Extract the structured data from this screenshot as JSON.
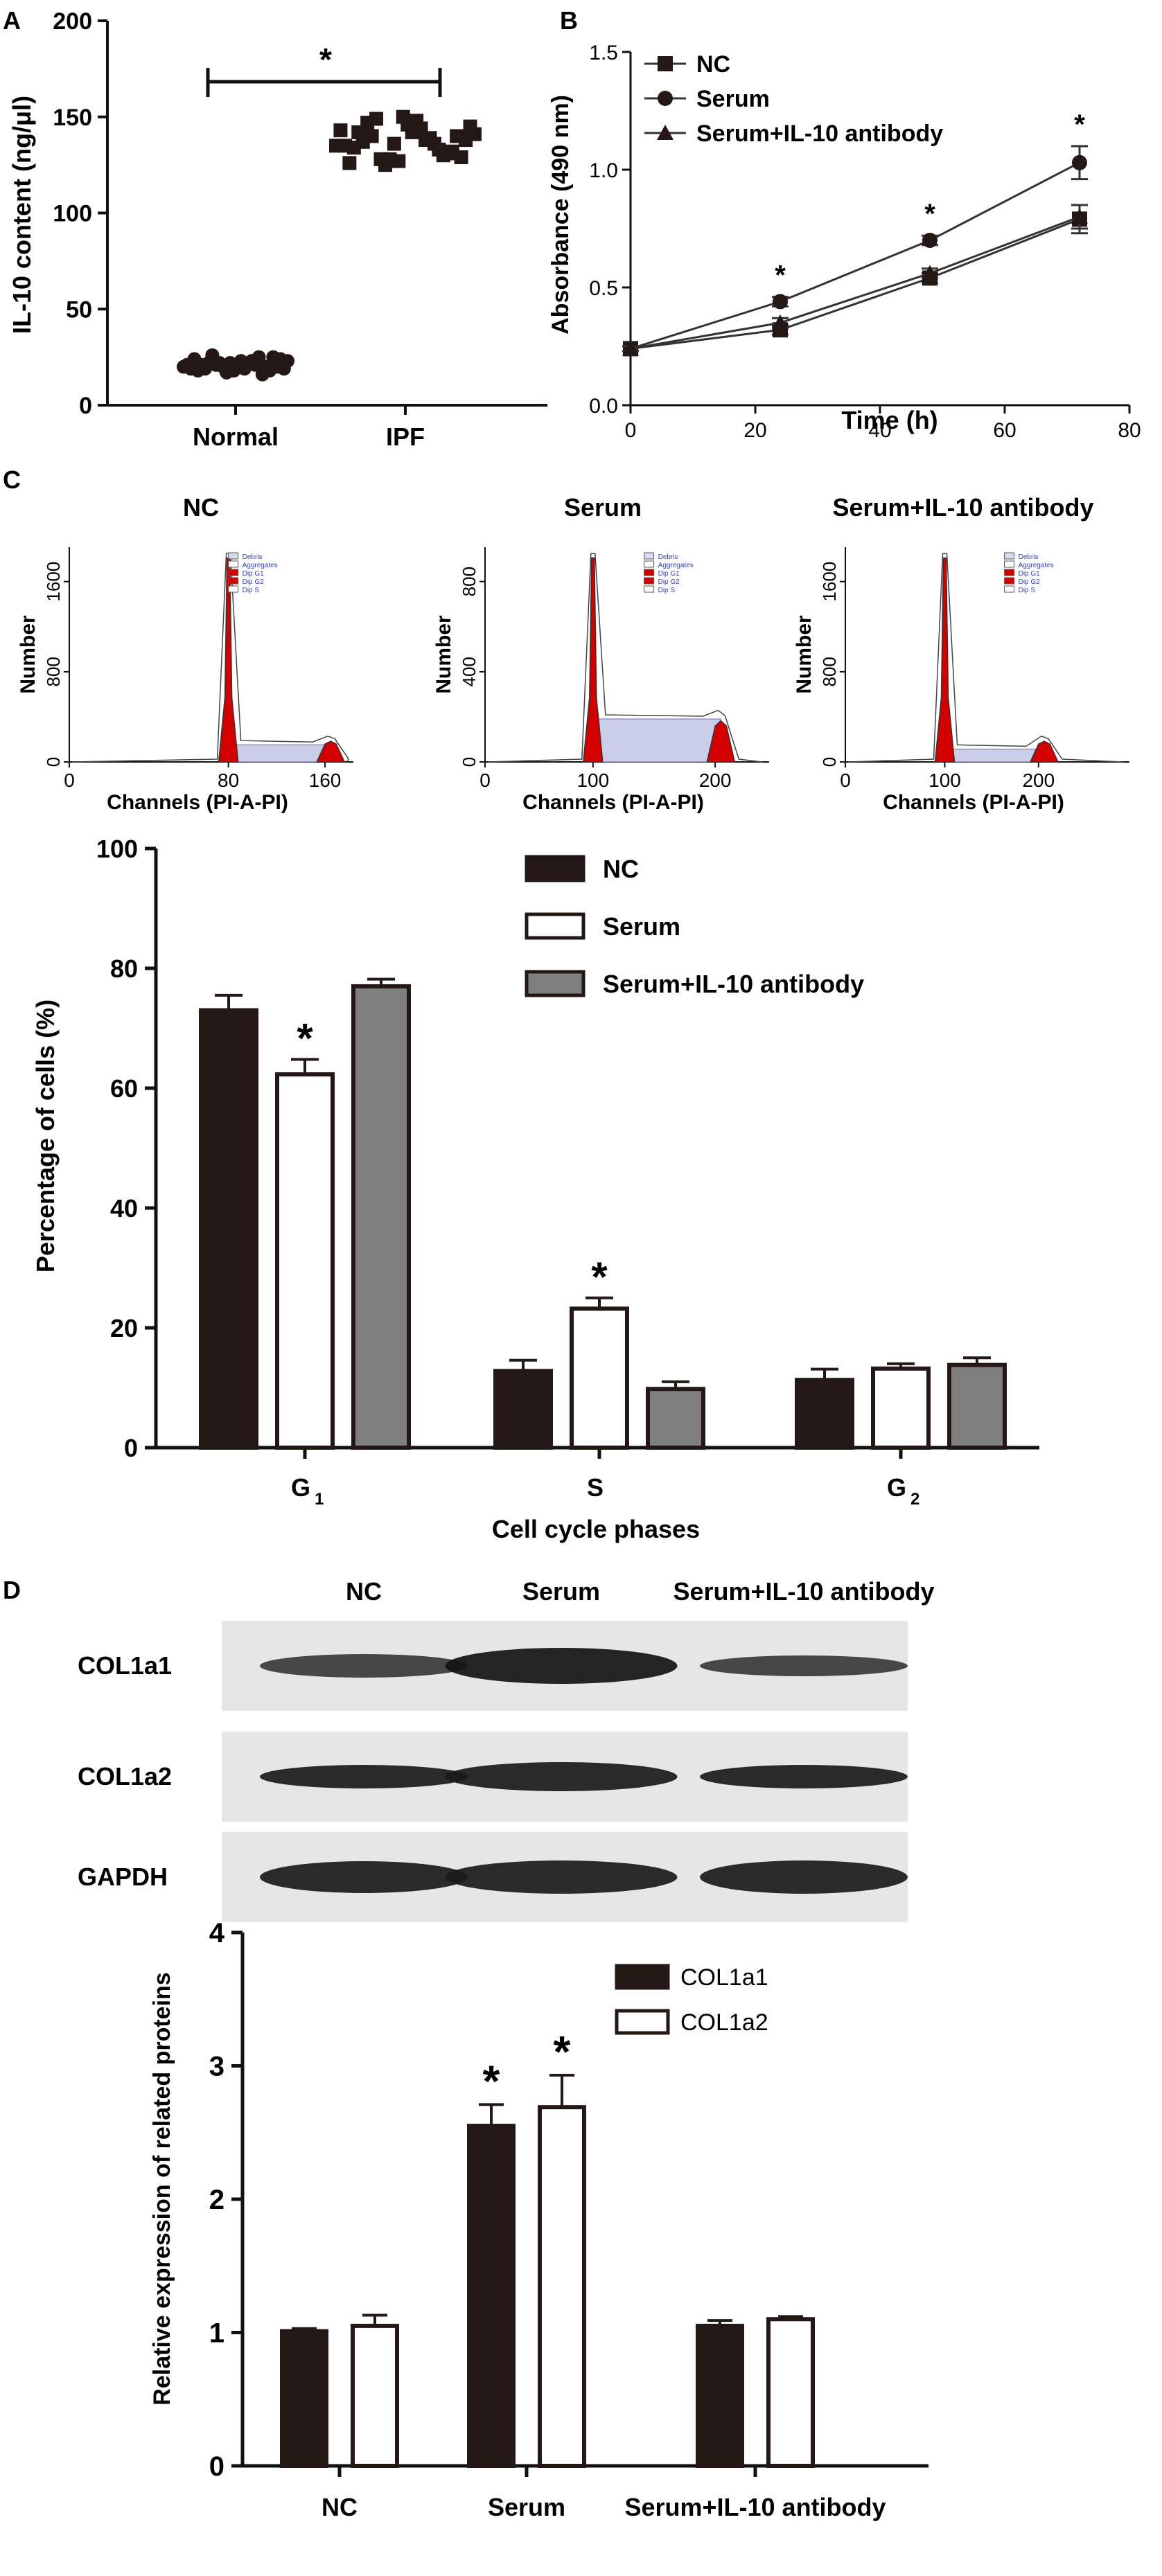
{
  "panel_letters": [
    "A",
    "B",
    "C",
    "D"
  ],
  "chart_data": [
    {
      "panel": "A",
      "type": "scatter",
      "ylabel": "IL-10 content (ng/μl)",
      "categories": [
        "Normal",
        "IPF"
      ],
      "ylim": [
        0,
        200
      ],
      "yticks": [
        "0",
        "50",
        "100",
        "150",
        "200"
      ],
      "series": [
        {
          "category": "Normal",
          "values": [
            20,
            22,
            18,
            25,
            19,
            21,
            17,
            23,
            20,
            24,
            22,
            19,
            18,
            21,
            26,
            20,
            16,
            23,
            19,
            22,
            21,
            24,
            18,
            20,
            22,
            25,
            19,
            21,
            23,
            20
          ]
        },
        {
          "category": "IPF",
          "values": [
            135,
            142,
            128,
            150,
            138,
            131,
            145,
            126,
            140,
            136,
            148,
            133,
            129,
            143,
            137,
            125,
            146,
            139,
            132,
            141,
            134,
            149,
            127,
            144,
            130,
            138,
            135,
            147,
            128,
            142,
            136,
            140
          ]
        }
      ],
      "significance": "*"
    },
    {
      "panel": "B",
      "type": "line",
      "xlabel": "Time (h)",
      "ylabel": "Absorbance (490 nm)",
      "xlim": [
        0,
        80
      ],
      "ylim": [
        0.0,
        1.5
      ],
      "xticks": [
        "0",
        "20",
        "40",
        "60",
        "80"
      ],
      "yticks": [
        "0.0",
        "0.5",
        "1.0",
        "1.5"
      ],
      "x": [
        0,
        24,
        48,
        72
      ],
      "series": [
        {
          "name": "NC",
          "marker": "square",
          "values": [
            0.24,
            0.32,
            0.54,
            0.79
          ],
          "errors": [
            0.01,
            0.02,
            0.02,
            0.06
          ]
        },
        {
          "name": "Serum",
          "marker": "circle",
          "values": [
            0.24,
            0.44,
            0.7,
            1.03
          ],
          "errors": [
            0.01,
            0.02,
            0.02,
            0.07
          ]
        },
        {
          "name": "Serum+IL-10 antibody",
          "marker": "triangle",
          "values": [
            0.24,
            0.35,
            0.56,
            0.8
          ],
          "errors": [
            0.01,
            0.02,
            0.02,
            0.05
          ]
        }
      ],
      "significance": [
        "*",
        "*",
        "*"
      ]
    },
    {
      "panel": "C",
      "type": "line",
      "subtype": "flow-cytometry-histograms",
      "histograms": [
        {
          "title": "NC",
          "xticks": [
            "0",
            "80",
            "160"
          ],
          "yticks": [
            "0",
            "800",
            "1600"
          ],
          "xlabel": "Channels (PI-A-PI)",
          "ylabel": "Number",
          "legend": [
            "Debris",
            "Aggregates",
            "Dip G1",
            "Dip G2",
            "Dip S"
          ]
        },
        {
          "title": "Serum",
          "xticks": [
            "0",
            "100",
            "200"
          ],
          "yticks": [
            "0",
            "400",
            "800"
          ],
          "xlabel": "Channels (PI-A-PI)",
          "ylabel": "Number",
          "legend": [
            "Debris",
            "Aggregates",
            "Dip G1",
            "Dip G2",
            "Dip S"
          ]
        },
        {
          "title": "Serum+IL-10 antibody",
          "xticks": [
            "0",
            "100",
            "200"
          ],
          "yticks": [
            "0",
            "800",
            "1600"
          ],
          "xlabel": "Channels (PI-A-PI)",
          "ylabel": "Number",
          "legend": [
            "Debris",
            "Aggregates",
            "Dip G1",
            "Dip G2",
            "Dip S"
          ]
        }
      ]
    },
    {
      "panel": "C",
      "type": "bar",
      "xlabel": "Cell cycle phases",
      "ylabel": "Percentage of cells (%)",
      "categories": [
        "G",
        "S",
        "G"
      ],
      "category_subscripts": [
        "1",
        "",
        "2"
      ],
      "ylim": [
        0,
        100
      ],
      "yticks": [
        "0",
        "20",
        "40",
        "60",
        "80",
        "100"
      ],
      "series": [
        {
          "name": "NC",
          "color": "#231815",
          "values": [
            73,
            12.8,
            11.3
          ],
          "errors": [
            2.5,
            1.8,
            1.8
          ]
        },
        {
          "name": "Serum",
          "color": "#ffffff",
          "values": [
            62.3,
            23.2,
            13.2
          ],
          "errors": [
            2.5,
            1.8,
            0.8
          ]
        },
        {
          "name": "Serum+IL-10 antibody",
          "color": "#7f7f7f",
          "values": [
            77,
            9.8,
            13.8
          ],
          "errors": [
            1.2,
            1.2,
            1.2
          ]
        }
      ],
      "significance": [
        [
          "",
          "*",
          ""
        ],
        [
          "",
          "*",
          ""
        ],
        [
          "",
          "",
          ""
        ]
      ]
    },
    {
      "panel": "D",
      "type": "table",
      "subtype": "western-blot",
      "lanes": [
        "NC",
        "Serum",
        "Serum+IL-10 antibody"
      ],
      "rows": [
        "COL1a1",
        "COL1a2",
        "GAPDH"
      ]
    },
    {
      "panel": "D",
      "type": "bar",
      "ylabel": "Relative expression of related proteins",
      "categories": [
        "NC",
        "Serum",
        "Serum+IL-10 antibody"
      ],
      "ylim": [
        0,
        4
      ],
      "yticks": [
        "0",
        "1",
        "2",
        "3",
        "4"
      ],
      "series": [
        {
          "name": "COL1a1",
          "color": "#231815",
          "values": [
            1.01,
            2.55,
            1.05
          ],
          "errors": [
            0.02,
            0.16,
            0.04
          ]
        },
        {
          "name": "COL1a2",
          "color": "#ffffff",
          "values": [
            1.05,
            2.69,
            1.1
          ],
          "errors": [
            0.08,
            0.24,
            0.02
          ]
        }
      ],
      "significance": [
        [
          "",
          "*",
          ""
        ],
        [
          "",
          "*",
          ""
        ]
      ]
    }
  ]
}
